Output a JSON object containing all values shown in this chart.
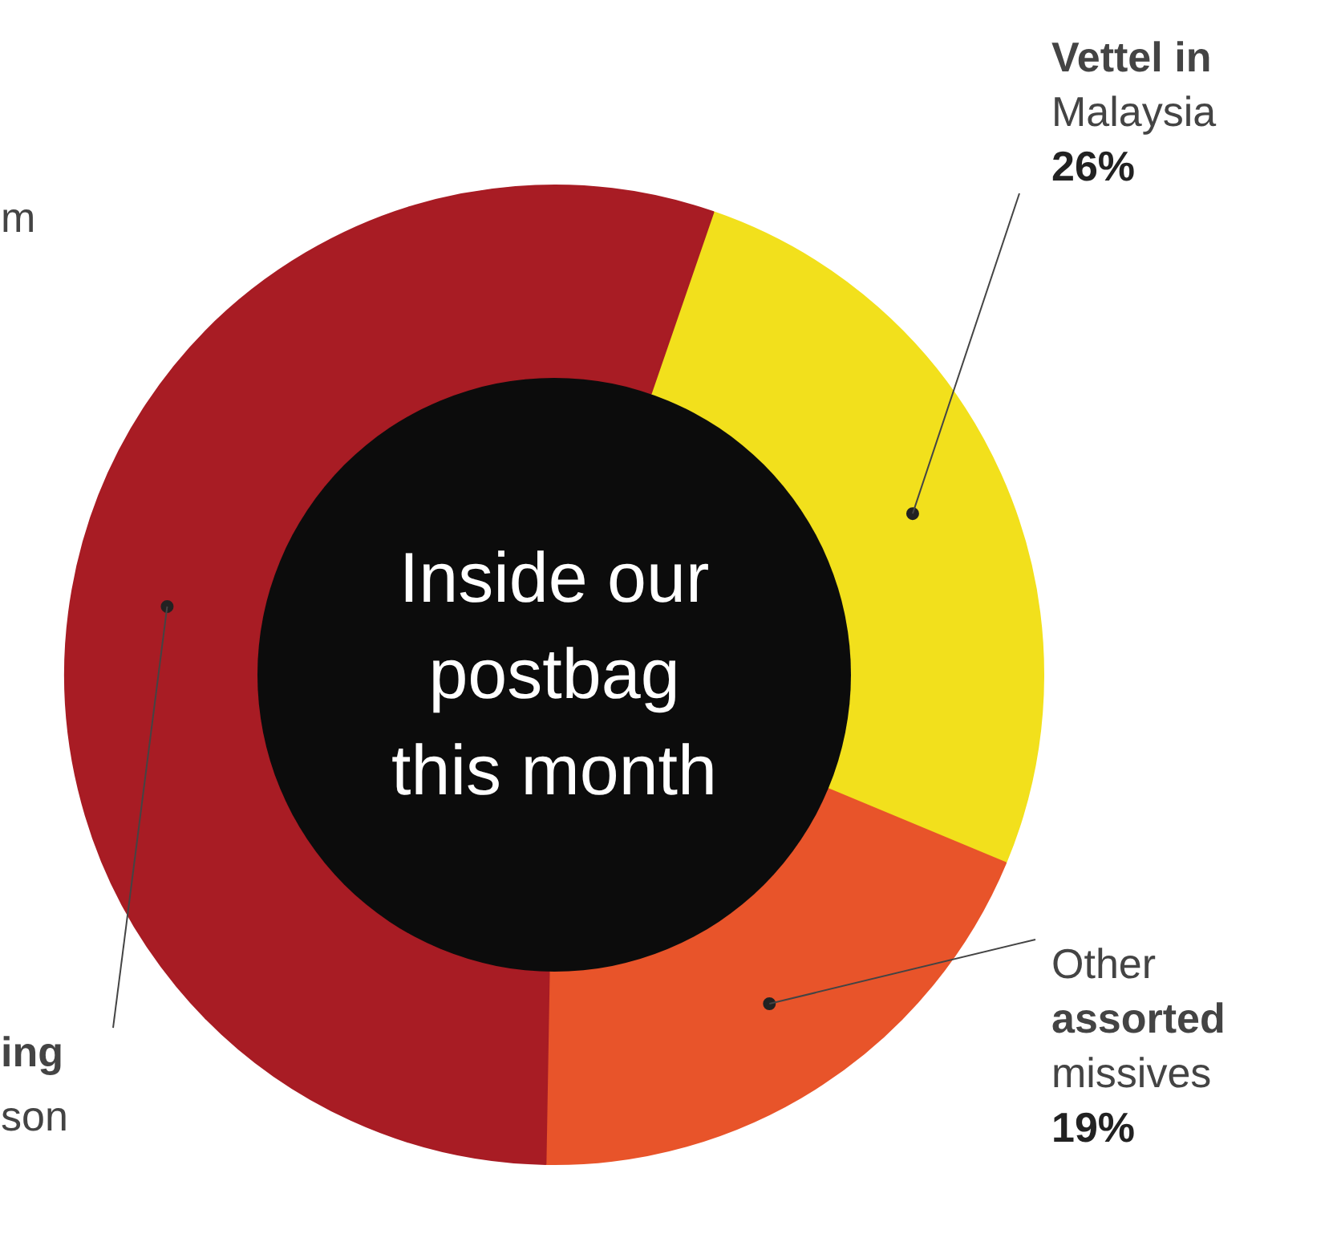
{
  "chart_data": {
    "type": "donut",
    "title": "Inside our postbag this month",
    "categories": [
      "Vettel in Malaysia",
      "Other assorted missives",
      null
    ],
    "values": [
      26,
      19,
      55
    ],
    "colors": [
      "#f2e01c",
      "#e8542a",
      "#a81c24"
    ],
    "value_labels": [
      "26%",
      "19%",
      null
    ],
    "annotations": [
      "m",
      "ing",
      "son"
    ]
  }
}
